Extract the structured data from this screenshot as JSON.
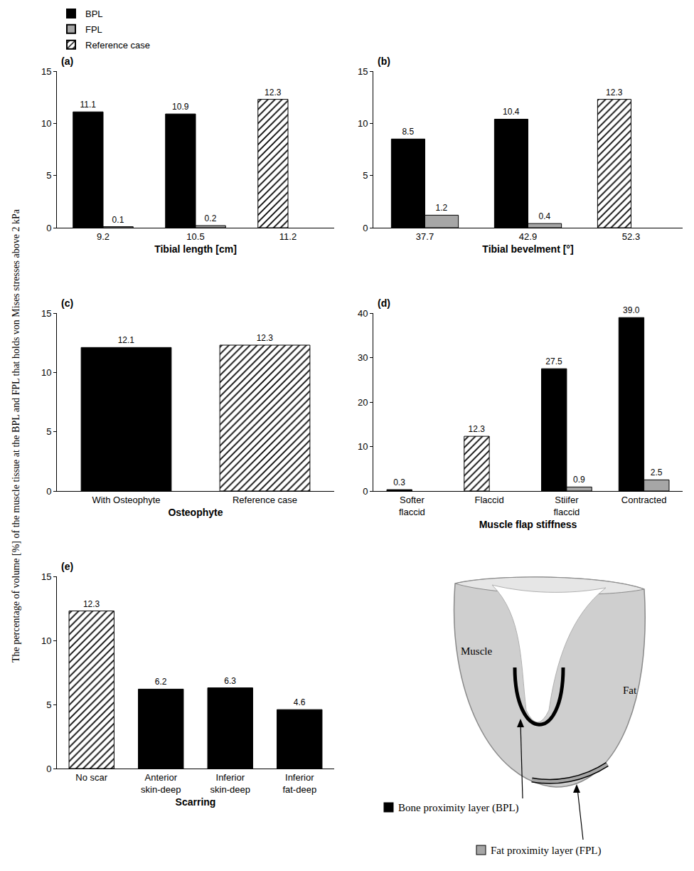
{
  "y_axis_label": "The percentage of volume [%] of the muscle tissue at the BPL and FPL that holds von Mises stresses above 2 kPa",
  "chart_data": [
    {
      "type": "bar",
      "panel": "(a)",
      "x_label": "Tibial length [cm]",
      "categories": [
        "9.2",
        "10.5",
        "11.2"
      ],
      "series": [
        {
          "name": "BPL",
          "color": "#000000",
          "values": [
            11.1,
            10.9,
            null
          ]
        },
        {
          "name": "FPL",
          "color": "#a6a6a6",
          "values": [
            0.1,
            0.2,
            null
          ]
        },
        {
          "name": "Reference case",
          "color": "#000000",
          "marker": "hatch",
          "values": [
            null,
            null,
            12.3
          ]
        }
      ],
      "ylim": [
        0,
        15
      ],
      "yticks": [
        0,
        5,
        10,
        15
      ],
      "grid": false,
      "data_labels": true,
      "legend": "upper left"
    },
    {
      "type": "bar",
      "panel": "(b)",
      "x_label": "Tibial bevelment [°]",
      "categories": [
        "37.7",
        "42.9",
        "52.3"
      ],
      "series": [
        {
          "name": "BPL",
          "color": "#000000",
          "values": [
            8.5,
            10.4,
            null
          ]
        },
        {
          "name": "FPL",
          "color": "#a6a6a6",
          "values": [
            1.2,
            0.4,
            null
          ]
        },
        {
          "name": "Reference case",
          "color": "#000000",
          "marker": "hatch",
          "values": [
            null,
            null,
            12.3
          ]
        }
      ],
      "ylim": [
        0,
        15
      ],
      "yticks": [
        0,
        5,
        10,
        15
      ],
      "grid": false,
      "data_labels": true
    },
    {
      "type": "bar",
      "panel": "(c)",
      "x_label": "Osteophyte",
      "categories": [
        "With Osteophyte",
        "Reference case"
      ],
      "series": [
        {
          "name": "BPL",
          "color": "#000000",
          "values": [
            12.1,
            null
          ]
        },
        {
          "name": "Reference case",
          "color": "#000000",
          "marker": "hatch",
          "values": [
            null,
            12.3
          ]
        }
      ],
      "ylim": [
        0,
        15
      ],
      "yticks": [
        0,
        5,
        10,
        15
      ],
      "grid": false,
      "data_labels": true
    },
    {
      "type": "bar",
      "panel": "(d)",
      "x_label": "Muscle flap stiffness",
      "categories": [
        "Softer flaccid",
        "Flaccid",
        "Stiifer flaccid",
        "Contracted"
      ],
      "series": [
        {
          "name": "BPL",
          "color": "#000000",
          "values": [
            0.3,
            null,
            27.5,
            39.0
          ],
          "value_labels": [
            "0.3",
            null,
            "27.5",
            "39.0"
          ]
        },
        {
          "name": "FPL",
          "color": "#a6a6a6",
          "values": [
            null,
            null,
            0.9,
            2.5
          ]
        },
        {
          "name": "Reference case",
          "color": "#000000",
          "marker": "hatch",
          "values": [
            null,
            12.3,
            null,
            null
          ]
        }
      ],
      "ylim": [
        0,
        40
      ],
      "yticks": [
        0,
        10,
        20,
        30,
        40
      ],
      "grid": false,
      "data_labels": true
    },
    {
      "type": "bar",
      "panel": "(e)",
      "x_label": "Scarring",
      "categories": [
        "No scar",
        "Anterior skin-deep",
        "Inferior skin-deep",
        "Inferior fat-deep"
      ],
      "series": [
        {
          "name": "BPL",
          "color": "#000000",
          "values": [
            null,
            6.2,
            6.3,
            4.6
          ]
        },
        {
          "name": "Reference case",
          "color": "#000000",
          "marker": "hatch",
          "values": [
            12.3,
            null,
            null,
            null
          ]
        }
      ],
      "ylim": [
        0,
        15
      ],
      "yticks": [
        0,
        5,
        10,
        15
      ],
      "grid": false,
      "data_labels": true
    }
  ],
  "diagram": {
    "muscle_label": "Muscle",
    "fat_label": "Fat",
    "layers": [
      {
        "name": "Bone proximity layer (BPL)",
        "color": "#000000"
      },
      {
        "name": "Fat proximity layer (FPL)",
        "color": "#a6a6a6"
      }
    ]
  }
}
